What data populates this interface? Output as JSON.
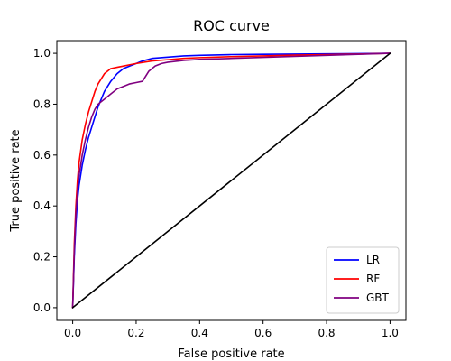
{
  "chart_data": {
    "type": "line",
    "title": "ROC curve",
    "xlabel": "False positive rate",
    "ylabel": "True positive rate",
    "xlim": [
      -0.05,
      1.05
    ],
    "ylim": [
      -0.05,
      1.05
    ],
    "xticks": [
      "0.0",
      "0.2",
      "0.4",
      "0.6",
      "0.8",
      "1.0"
    ],
    "yticks": [
      "0.0",
      "0.2",
      "0.4",
      "0.6",
      "0.8",
      "1.0"
    ],
    "grid": false,
    "legend_position": "lower-right",
    "series": [
      {
        "name": "LR",
        "color": "#0000ff",
        "x": [
          0.0,
          0.005,
          0.01,
          0.015,
          0.02,
          0.03,
          0.04,
          0.05,
          0.06,
          0.07,
          0.08,
          0.09,
          0.1,
          0.12,
          0.14,
          0.16,
          0.18,
          0.2,
          0.22,
          0.25,
          0.3,
          0.35,
          0.4,
          0.5,
          0.6,
          0.7,
          0.8,
          0.9,
          1.0
        ],
        "y": [
          0.0,
          0.2,
          0.33,
          0.42,
          0.48,
          0.56,
          0.62,
          0.67,
          0.71,
          0.75,
          0.79,
          0.82,
          0.85,
          0.89,
          0.92,
          0.94,
          0.95,
          0.96,
          0.97,
          0.98,
          0.985,
          0.99,
          0.992,
          0.995,
          0.996,
          0.997,
          0.998,
          0.999,
          1.0
        ]
      },
      {
        "name": "RF",
        "color": "#ff0000",
        "x": [
          0.0,
          0.005,
          0.01,
          0.015,
          0.02,
          0.03,
          0.04,
          0.05,
          0.06,
          0.07,
          0.08,
          0.09,
          0.1,
          0.12,
          0.14,
          0.16,
          0.18,
          0.2,
          0.25,
          0.3,
          0.35,
          0.4,
          0.5,
          0.6,
          0.7,
          0.8,
          0.9,
          1.0
        ],
        "y": [
          0.0,
          0.25,
          0.4,
          0.5,
          0.57,
          0.66,
          0.72,
          0.77,
          0.81,
          0.85,
          0.88,
          0.9,
          0.92,
          0.94,
          0.945,
          0.95,
          0.955,
          0.96,
          0.97,
          0.975,
          0.98,
          0.983,
          0.987,
          0.99,
          0.993,
          0.995,
          0.997,
          1.0
        ]
      },
      {
        "name": "GBT",
        "color": "#800080",
        "x": [
          0.0,
          0.005,
          0.01,
          0.015,
          0.02,
          0.03,
          0.04,
          0.05,
          0.06,
          0.07,
          0.08,
          0.09,
          0.1,
          0.12,
          0.14,
          0.16,
          0.18,
          0.2,
          0.22,
          0.24,
          0.26,
          0.28,
          0.3,
          0.35,
          0.4,
          0.5,
          0.6,
          0.7,
          0.8,
          0.9,
          1.0
        ],
        "y": [
          0.0,
          0.22,
          0.37,
          0.46,
          0.52,
          0.6,
          0.66,
          0.71,
          0.75,
          0.78,
          0.8,
          0.81,
          0.82,
          0.84,
          0.86,
          0.87,
          0.88,
          0.885,
          0.89,
          0.93,
          0.95,
          0.96,
          0.965,
          0.972,
          0.976,
          0.98,
          0.984,
          0.988,
          0.992,
          0.996,
          1.0
        ]
      },
      {
        "name": "",
        "color": "#000000",
        "x": [
          0.0,
          1.0
        ],
        "y": [
          0.0,
          1.0
        ]
      }
    ]
  }
}
